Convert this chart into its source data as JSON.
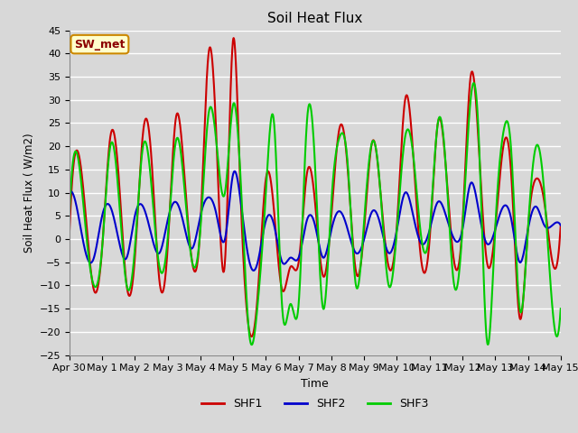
{
  "title": "Soil Heat Flux",
  "ylabel": "Soil Heat Flux ( W/m2)",
  "xlabel": "Time",
  "annotation": "SW_met",
  "ylim": [
    -25,
    45
  ],
  "yticks": [
    -25,
    -20,
    -15,
    -10,
    -5,
    0,
    5,
    10,
    15,
    20,
    25,
    30,
    35,
    40,
    45
  ],
  "bg_color": "#d8d8d8",
  "shf1_color": "#cc0000",
  "shf2_color": "#0000cc",
  "shf3_color": "#00cc00",
  "legend_labels": [
    "SHF1",
    "SHF2",
    "SHF3"
  ],
  "xtick_labels": [
    "Apr 30",
    "May 1",
    "May 2",
    "May 3",
    "May 4",
    "May 5",
    "May 6",
    "May 7",
    "May 8",
    "May 9",
    "May 10",
    "May 11",
    "May 12",
    "May 13",
    "May 14",
    "May 15"
  ],
  "shf1_knots": [
    0.0,
    0.25,
    0.5,
    0.75,
    1.0,
    1.25,
    1.5,
    1.75,
    2.0,
    2.25,
    2.5,
    2.75,
    3.0,
    3.25,
    3.5,
    3.75,
    4.0,
    4.25,
    4.5,
    4.75,
    5.0,
    5.2,
    5.5,
    5.75,
    6.0,
    6.25,
    6.5,
    6.75,
    7.0,
    7.25,
    7.5,
    7.75,
    8.0,
    8.25,
    8.5,
    8.75,
    9.0,
    9.25,
    9.5,
    9.75,
    10.0,
    10.25,
    10.5,
    10.75,
    11.0,
    11.25,
    11.5,
    11.75,
    12.0,
    12.25,
    12.5,
    12.75,
    13.0,
    13.25,
    13.5,
    13.75,
    14.0,
    14.25,
    14.5,
    14.75,
    15.0
  ],
  "shf1_vals": [
    1,
    19,
    5,
    -11,
    -2,
    22,
    14,
    -10,
    -4,
    23,
    18,
    -9,
    -2,
    26,
    15,
    -5,
    3,
    40,
    20,
    -5,
    43,
    15,
    -20,
    -12,
    13,
    6,
    -11,
    -6,
    -5,
    14,
    8,
    -8,
    5,
    24,
    15,
    -7,
    2,
    21,
    10,
    -6,
    3,
    30,
    18,
    -5,
    0,
    25,
    15,
    -5,
    3,
    35,
    20,
    -5,
    2,
    20,
    13,
    -17,
    2,
    13,
    8,
    -5,
    3
  ],
  "shf2_knots": [
    0.0,
    0.25,
    0.5,
    0.75,
    1.0,
    1.25,
    1.5,
    1.75,
    2.0,
    2.25,
    2.5,
    2.75,
    3.0,
    3.25,
    3.5,
    3.75,
    4.0,
    4.25,
    4.5,
    4.75,
    5.0,
    5.25,
    5.5,
    5.75,
    6.0,
    6.25,
    6.5,
    6.75,
    7.0,
    7.25,
    7.5,
    7.75,
    8.0,
    8.25,
    8.5,
    8.75,
    9.0,
    9.25,
    9.5,
    9.75,
    10.0,
    10.25,
    10.5,
    10.75,
    11.0,
    11.25,
    11.5,
    11.75,
    12.0,
    12.25,
    12.5,
    12.75,
    13.0,
    13.25,
    13.5,
    13.75,
    14.0,
    14.25,
    14.5,
    14.75,
    15.0
  ],
  "shf2_vals": [
    10,
    6,
    -3,
    -4,
    5,
    7,
    0,
    -4,
    5,
    7,
    1,
    -3,
    4,
    8,
    3,
    -2,
    5,
    9,
    5,
    0,
    14,
    7,
    -5,
    -5,
    4,
    3,
    -5,
    -4,
    -4,
    4,
    3,
    -4,
    2,
    6,
    2,
    -3,
    0,
    6,
    3,
    -3,
    2,
    10,
    5,
    -1,
    2,
    8,
    5,
    0,
    2,
    12,
    6,
    -1,
    2,
    7,
    4,
    -5,
    2,
    7,
    3,
    3,
    3
  ],
  "shf3_knots": [
    0.0,
    0.25,
    0.5,
    0.75,
    1.0,
    1.25,
    1.5,
    1.75,
    2.0,
    2.25,
    2.5,
    2.75,
    3.0,
    3.25,
    3.5,
    3.75,
    4.0,
    4.25,
    4.5,
    4.75,
    5.0,
    5.25,
    5.5,
    5.75,
    6.0,
    6.25,
    6.5,
    6.75,
    7.0,
    7.25,
    7.5,
    7.75,
    8.0,
    8.25,
    8.5,
    8.75,
    9.0,
    9.25,
    9.5,
    9.75,
    10.0,
    10.25,
    10.5,
    10.75,
    11.0,
    11.25,
    11.5,
    11.75,
    12.0,
    12.25,
    12.5,
    12.75,
    13.0,
    13.25,
    13.5,
    13.75,
    14.0,
    14.25,
    14.5,
    14.75,
    15.0
  ],
  "shf3_vals": [
    5,
    18,
    2,
    -10,
    -2,
    20,
    10,
    -10,
    -2,
    20,
    12,
    -6,
    0,
    21,
    12,
    -5,
    2,
    27,
    20,
    10,
    29,
    10,
    -21,
    -14,
    10,
    25,
    -15,
    -14,
    -14,
    25,
    16,
    -15,
    8,
    22,
    16,
    -10,
    4,
    21,
    10,
    -10,
    2,
    22,
    18,
    0,
    2,
    25,
    15,
    -10,
    2,
    30,
    22,
    -22,
    2,
    23,
    18,
    -15,
    2,
    20,
    10,
    -15,
    -15
  ]
}
